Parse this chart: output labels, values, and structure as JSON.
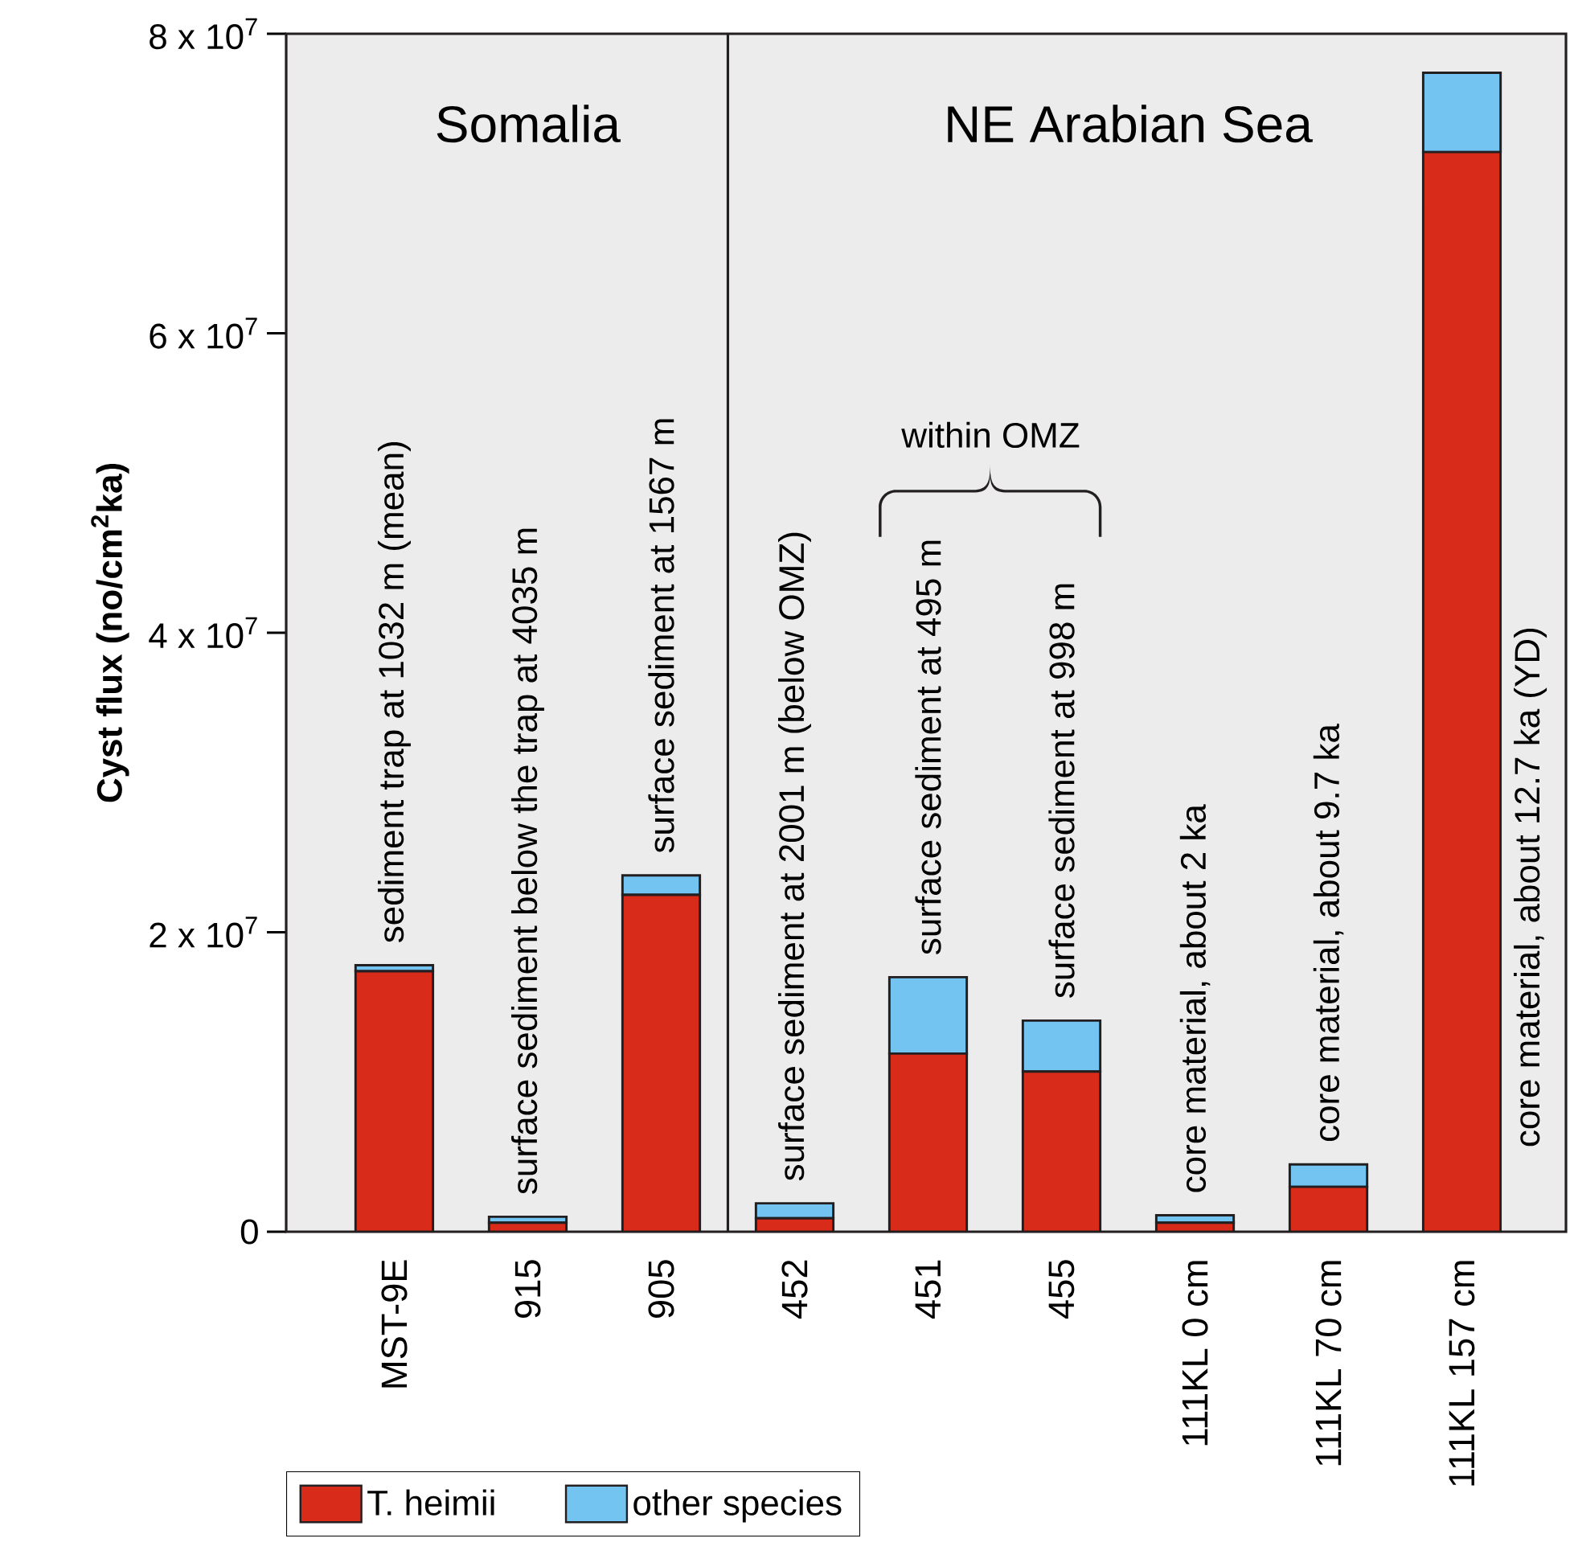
{
  "chart_data": {
    "type": "bar",
    "stacked": true,
    "categories": [
      "MST-9E",
      "915",
      "905",
      "452",
      "451",
      "455",
      "111KL   0 cm",
      "111KL   70 cm",
      "111KL 157 cm"
    ],
    "series": [
      {
        "name": "T. heimii",
        "color": "#d92b1a",
        "values": [
          17400000,
          600000,
          22500000,
          900000,
          11900000,
          10700000,
          600000,
          3000000,
          72100000
        ]
      },
      {
        "name": "other species",
        "color": "#73c4f0",
        "values": [
          400000,
          400000,
          1300000,
          1000000,
          5100000,
          3400000,
          500000,
          1500000,
          5300000
        ]
      }
    ],
    "ylabel": "Cyst flux (no/cm$^{2}$ka)",
    "ylim": [
      0,
      80000000
    ],
    "yticks": [
      0,
      {
        "value": 20000000,
        "label": "2 x 10$^{7}$"
      },
      {
        "value": 40000000,
        "label": "4 x 10$^{7}$"
      },
      {
        "value": 60000000,
        "label": "6 x 10$^{7}$"
      },
      {
        "value": 80000000,
        "label": "8 x 10$^{7}$"
      }
    ],
    "annotations": [
      "Somalia",
      "NE Arabian Sea",
      "within OMZ",
      {
        "text": "sediment trap at 1032 m (mean)",
        "x": "MST-9E",
        "y": 17800000
      },
      {
        "text": "surface sediment below the trap at 4035 m",
        "x": "915",
        "y": 1000000
      },
      {
        "text": "surface sediment at 1567 m",
        "x": "905",
        "y": 23800000
      },
      {
        "text": "surface sediment at 2001 m (below OMZ)",
        "x": "452",
        "y": 1900000
      },
      {
        "text": "surface sediment at 495 m",
        "x": "451",
        "y": 17000000
      },
      {
        "text": "surface sediment at 998 m",
        "x": "455",
        "y": 14100000
      },
      {
        "text": "core material, about 2 ka",
        "x": "111KL   0 cm",
        "y": 1100000
      },
      {
        "text": "core material, about 9.7 ka",
        "x": "111KL   70 cm",
        "y": 4500000
      },
      "core material, about 12.7 ka (YD)"
    ],
    "legend": "bottom"
  }
}
